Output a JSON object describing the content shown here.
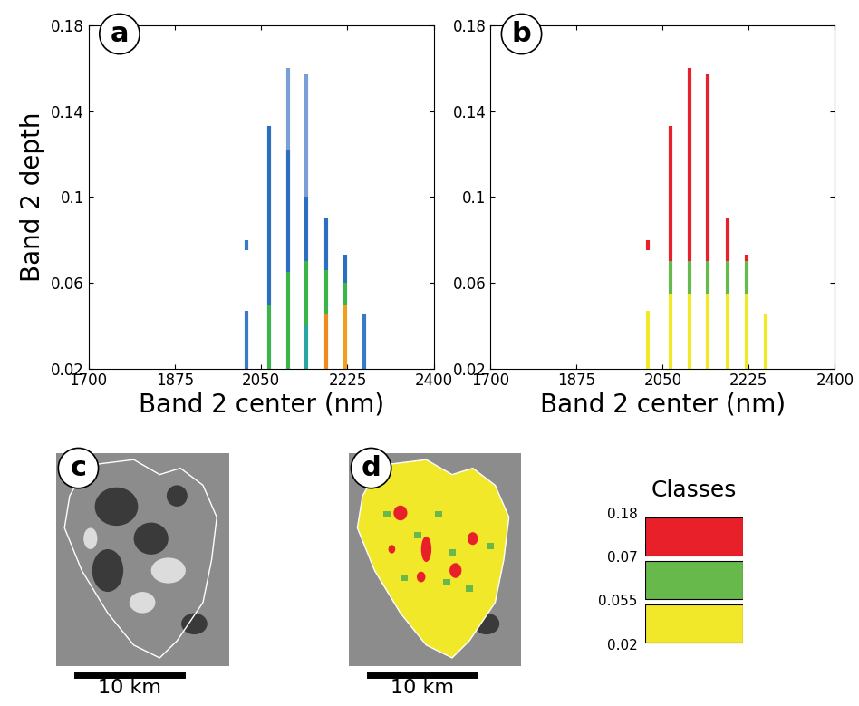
{
  "chart_data": [
    {
      "type": "range",
      "title": "a",
      "x_label": "Band 2 center (nm)",
      "y_label": "Band 2 depth",
      "xlim": [
        1700,
        2400
      ],
      "xticks": [
        1700,
        1875,
        2050,
        2225,
        2400
      ],
      "ylim": [
        0.02,
        0.18
      ],
      "yticks": [
        0.02,
        0.06,
        0.1,
        0.14,
        0.18
      ],
      "x": [
        2020,
        2066,
        2104,
        2141,
        2181,
        2220,
        2259
      ],
      "segments": [
        [
          [
            0.02,
            0.047,
            "#3a78c8"
          ],
          [
            0.075,
            0.08,
            "#3a78c8"
          ]
        ],
        [
          [
            0.02,
            0.05,
            "#3bb54a"
          ],
          [
            0.05,
            0.133,
            "#2c6fbf"
          ]
        ],
        [
          [
            0.02,
            0.065,
            "#3bb54a"
          ],
          [
            0.065,
            0.122,
            "#2c6fbf"
          ],
          [
            0.122,
            0.16,
            "#7a9fd6"
          ]
        ],
        [
          [
            0.02,
            0.04,
            "#2aa6a0"
          ],
          [
            0.04,
            0.07,
            "#3bb54a"
          ],
          [
            0.07,
            0.1,
            "#2c6fbf"
          ],
          [
            0.1,
            0.157,
            "#7a9fd6"
          ]
        ],
        [
          [
            0.02,
            0.045,
            "#f08a1c"
          ],
          [
            0.045,
            0.066,
            "#3bb54a"
          ],
          [
            0.066,
            0.09,
            "#2c6fbf"
          ]
        ],
        [
          [
            0.02,
            0.05,
            "#f0a01c"
          ],
          [
            0.05,
            0.06,
            "#3bb54a"
          ],
          [
            0.06,
            0.073,
            "#2c6fbf"
          ]
        ],
        [
          [
            0.02,
            0.045,
            "#3a78c8"
          ]
        ]
      ]
    },
    {
      "type": "range",
      "title": "b",
      "x_label": "Band 2 center (nm)",
      "xlim": [
        1700,
        2400
      ],
      "xticks": [
        1700,
        1875,
        2050,
        2225,
        2400
      ],
      "ylim": [
        0.02,
        0.18
      ],
      "yticks": [
        0.02,
        0.06,
        0.1,
        0.14,
        0.18
      ],
      "x": [
        2020,
        2066,
        2104,
        2141,
        2181,
        2220,
        2259
      ],
      "segments": [
        [
          [
            0.02,
            0.047,
            "#f2e82a"
          ],
          [
            0.075,
            0.08,
            "#e8202a"
          ]
        ],
        [
          [
            0.02,
            0.055,
            "#f2e82a"
          ],
          [
            0.055,
            0.07,
            "#66b94a"
          ],
          [
            0.07,
            0.133,
            "#e8202a"
          ]
        ],
        [
          [
            0.02,
            0.055,
            "#f2e82a"
          ],
          [
            0.055,
            0.07,
            "#66b94a"
          ],
          [
            0.07,
            0.16,
            "#e8202a"
          ]
        ],
        [
          [
            0.02,
            0.055,
            "#f2e82a"
          ],
          [
            0.055,
            0.07,
            "#66b94a"
          ],
          [
            0.07,
            0.157,
            "#e8202a"
          ]
        ],
        [
          [
            0.02,
            0.055,
            "#f2e82a"
          ],
          [
            0.055,
            0.07,
            "#66b94a"
          ],
          [
            0.07,
            0.09,
            "#e8202a"
          ]
        ],
        [
          [
            0.02,
            0.055,
            "#f2e82a"
          ],
          [
            0.055,
            0.07,
            "#66b94a"
          ],
          [
            0.07,
            0.073,
            "#e8202a"
          ]
        ],
        [
          [
            0.02,
            0.045,
            "#f2e82a"
          ]
        ]
      ]
    }
  ],
  "images": [
    {
      "title": "c",
      "scale_bar": "10 km"
    },
    {
      "title": "d",
      "scale_bar": "10 km"
    }
  ],
  "classes": {
    "title": "Classes",
    "bounds": [
      0.02,
      0.055,
      0.07,
      0.18
    ],
    "colors": [
      "#f2e82a",
      "#66b94a",
      "#e8202a"
    ]
  }
}
